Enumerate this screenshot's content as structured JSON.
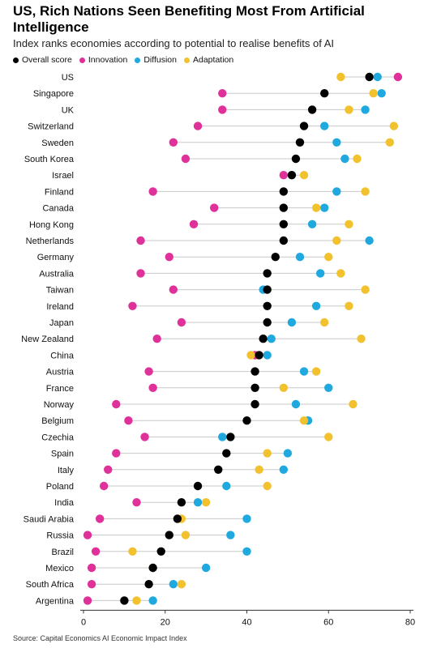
{
  "header": {
    "title": "US, Rich Nations Seen Benefiting Most From Artificial Intelligence",
    "subtitle": "Index ranks economies according to potential to realise benefits of AI"
  },
  "source": "Source: Capital Economics AI Economic Impact Index",
  "chart_data": {
    "type": "scatter",
    "title": "US, Rich Nations Seen Benefiting Most From Artificial Intelligence",
    "subtitle": "Index ranks economies according to potential to realise benefits of AI",
    "xlim": [
      0,
      80
    ],
    "x_ticks": [
      0,
      20,
      40,
      60,
      80
    ],
    "grid": false,
    "legend_position": "top-left",
    "categories": [
      "US",
      "Singapore",
      "UK",
      "Switzerland",
      "Sweden",
      "South Korea",
      "Israel",
      "Finland",
      "Canada",
      "Hong Kong",
      "Netherlands",
      "Germany",
      "Australia",
      "Taiwan",
      "Ireland",
      "Japan",
      "New Zealand",
      "China",
      "Austria",
      "France",
      "Norway",
      "Belgium",
      "Czechia",
      "Spain",
      "Italy",
      "Poland",
      "India",
      "Saudi Arabia",
      "Russia",
      "Brazil",
      "Mexico",
      "South Africa",
      "Argentina"
    ],
    "series": [
      {
        "name": "Innovation",
        "color": "#e0309a",
        "values": [
          77,
          34,
          34,
          28,
          22,
          25,
          49,
          17,
          32,
          27,
          14,
          21,
          14,
          22,
          12,
          24,
          18,
          42,
          16,
          17,
          8,
          11,
          15,
          8,
          6,
          5,
          13,
          4,
          1,
          3,
          2,
          2,
          1
        ]
      },
      {
        "name": "Diffusion",
        "color": "#1fa9df",
        "values": [
          72,
          73,
          69,
          59,
          62,
          64,
          51,
          62,
          59,
          56,
          70,
          53,
          58,
          44,
          57,
          51,
          46,
          45,
          54,
          60,
          52,
          55,
          34,
          50,
          49,
          35,
          28,
          40,
          36,
          40,
          30,
          22,
          17
        ]
      },
      {
        "name": "Adaptation",
        "color": "#f2c12e",
        "values": [
          63,
          71,
          65,
          76,
          75,
          67,
          54,
          69,
          57,
          65,
          62,
          60,
          63,
          69,
          65,
          59,
          68,
          41,
          57,
          49,
          66,
          54,
          60,
          45,
          43,
          45,
          30,
          24,
          25,
          12,
          17,
          24,
          13
        ]
      },
      {
        "name": "Overall score",
        "color": "#000000",
        "values": [
          70,
          59,
          56,
          54,
          53,
          52,
          51,
          49,
          49,
          49,
          49,
          47,
          45,
          45,
          45,
          45,
          44,
          43,
          42,
          42,
          42,
          40,
          36,
          35,
          33,
          28,
          24,
          23,
          21,
          19,
          17,
          16,
          10
        ]
      }
    ]
  }
}
